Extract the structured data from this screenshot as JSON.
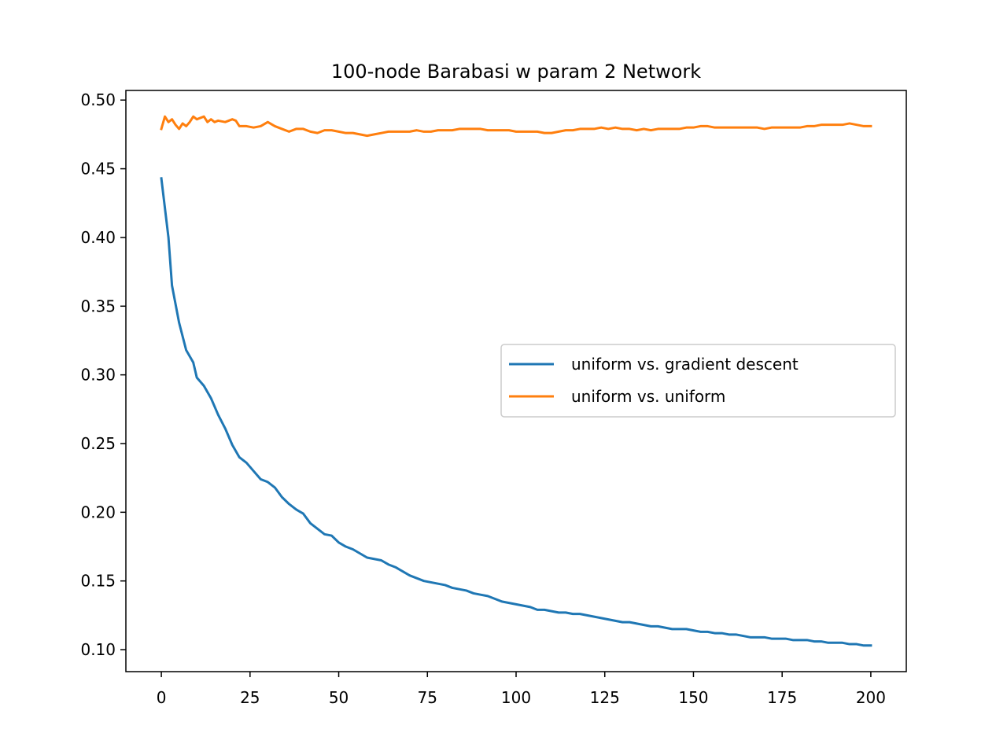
{
  "chart_data": {
    "type": "line",
    "title": "100-node Barabasi w param 2 Network",
    "xlabel": "",
    "ylabel": "",
    "xlim": [
      -10,
      210
    ],
    "ylim": [
      0.084,
      0.507
    ],
    "xticks": [
      0,
      25,
      50,
      75,
      100,
      125,
      150,
      175,
      200
    ],
    "yticks": [
      0.1,
      0.15,
      0.2,
      0.25,
      0.3,
      0.35,
      0.4,
      0.45,
      0.5
    ],
    "xtick_labels": [
      "0",
      "25",
      "50",
      "75",
      "100",
      "125",
      "150",
      "175",
      "200"
    ],
    "ytick_labels": [
      "0.10",
      "0.15",
      "0.20",
      "0.25",
      "0.30",
      "0.35",
      "0.40",
      "0.45",
      "0.50"
    ],
    "grid": false,
    "legend_position": "center-right",
    "series": [
      {
        "name": "uniform vs. gradient descent",
        "color": "#1f77b4",
        "x": [
          0,
          2,
          3,
          5,
          7,
          9,
          10,
          12,
          14,
          15,
          16,
          18,
          20,
          22,
          24,
          26,
          28,
          30,
          32,
          34,
          36,
          38,
          40,
          42,
          44,
          46,
          48,
          50,
          52,
          54,
          56,
          58,
          60,
          62,
          64,
          66,
          68,
          70,
          72,
          74,
          76,
          78,
          80,
          82,
          84,
          86,
          88,
          90,
          92,
          94,
          96,
          98,
          100,
          102,
          104,
          106,
          108,
          110,
          112,
          114,
          116,
          118,
          120,
          122,
          124,
          126,
          128,
          130,
          132,
          134,
          136,
          138,
          140,
          142,
          144,
          146,
          148,
          150,
          152,
          154,
          156,
          158,
          160,
          162,
          164,
          166,
          168,
          170,
          172,
          174,
          176,
          178,
          180,
          182,
          184,
          186,
          188,
          190,
          192,
          194,
          196,
          198,
          200
        ],
        "values": [
          0.443,
          0.4,
          0.365,
          0.338,
          0.318,
          0.309,
          0.298,
          0.292,
          0.283,
          0.277,
          0.271,
          0.261,
          0.249,
          0.24,
          0.236,
          0.23,
          0.224,
          0.222,
          0.218,
          0.211,
          0.206,
          0.202,
          0.199,
          0.192,
          0.188,
          0.184,
          0.183,
          0.178,
          0.175,
          0.173,
          0.17,
          0.167,
          0.166,
          0.165,
          0.162,
          0.16,
          0.157,
          0.154,
          0.152,
          0.15,
          0.149,
          0.148,
          0.147,
          0.145,
          0.144,
          0.143,
          0.141,
          0.14,
          0.139,
          0.137,
          0.135,
          0.134,
          0.133,
          0.132,
          0.131,
          0.129,
          0.129,
          0.128,
          0.127,
          0.127,
          0.126,
          0.126,
          0.125,
          0.124,
          0.123,
          0.122,
          0.121,
          0.12,
          0.12,
          0.119,
          0.118,
          0.117,
          0.117,
          0.116,
          0.115,
          0.115,
          0.115,
          0.114,
          0.113,
          0.113,
          0.112,
          0.112,
          0.111,
          0.111,
          0.11,
          0.109,
          0.109,
          0.109,
          0.108,
          0.108,
          0.108,
          0.107,
          0.107,
          0.107,
          0.106,
          0.106,
          0.105,
          0.105,
          0.105,
          0.104,
          0.104,
          0.103,
          0.103
        ]
      },
      {
        "name": "uniform vs. uniform",
        "color": "#ff7f0e",
        "x": [
          0,
          1,
          2,
          3,
          4,
          5,
          6,
          7,
          8,
          9,
          10,
          11,
          12,
          13,
          14,
          15,
          16,
          18,
          20,
          21,
          22,
          24,
          26,
          28,
          30,
          32,
          34,
          36,
          38,
          40,
          42,
          44,
          46,
          48,
          50,
          52,
          54,
          56,
          58,
          60,
          62,
          64,
          66,
          68,
          70,
          72,
          74,
          76,
          78,
          80,
          82,
          84,
          86,
          88,
          90,
          92,
          94,
          96,
          98,
          100,
          102,
          104,
          106,
          108,
          110,
          112,
          114,
          116,
          118,
          120,
          122,
          124,
          126,
          128,
          130,
          132,
          134,
          136,
          138,
          140,
          142,
          144,
          146,
          148,
          150,
          152,
          154,
          156,
          158,
          160,
          162,
          164,
          166,
          168,
          170,
          172,
          174,
          176,
          178,
          180,
          182,
          184,
          186,
          188,
          190,
          192,
          194,
          196,
          198,
          200
        ],
        "values": [
          0.479,
          0.488,
          0.484,
          0.486,
          0.482,
          0.479,
          0.483,
          0.481,
          0.484,
          0.488,
          0.486,
          0.487,
          0.488,
          0.484,
          0.486,
          0.484,
          0.485,
          0.484,
          0.486,
          0.485,
          0.481,
          0.481,
          0.48,
          0.481,
          0.484,
          0.481,
          0.479,
          0.477,
          0.479,
          0.479,
          0.477,
          0.476,
          0.478,
          0.478,
          0.477,
          0.476,
          0.476,
          0.475,
          0.474,
          0.475,
          0.476,
          0.477,
          0.477,
          0.477,
          0.477,
          0.478,
          0.477,
          0.477,
          0.478,
          0.478,
          0.478,
          0.479,
          0.479,
          0.479,
          0.479,
          0.478,
          0.478,
          0.478,
          0.478,
          0.477,
          0.477,
          0.477,
          0.477,
          0.476,
          0.476,
          0.477,
          0.478,
          0.478,
          0.479,
          0.479,
          0.479,
          0.48,
          0.479,
          0.48,
          0.479,
          0.479,
          0.478,
          0.479,
          0.478,
          0.479,
          0.479,
          0.479,
          0.479,
          0.48,
          0.48,
          0.481,
          0.481,
          0.48,
          0.48,
          0.48,
          0.48,
          0.48,
          0.48,
          0.48,
          0.479,
          0.48,
          0.48,
          0.48,
          0.48,
          0.48,
          0.481,
          0.481,
          0.482,
          0.482,
          0.482,
          0.482,
          0.483,
          0.482,
          0.481,
          0.481
        ]
      }
    ]
  }
}
